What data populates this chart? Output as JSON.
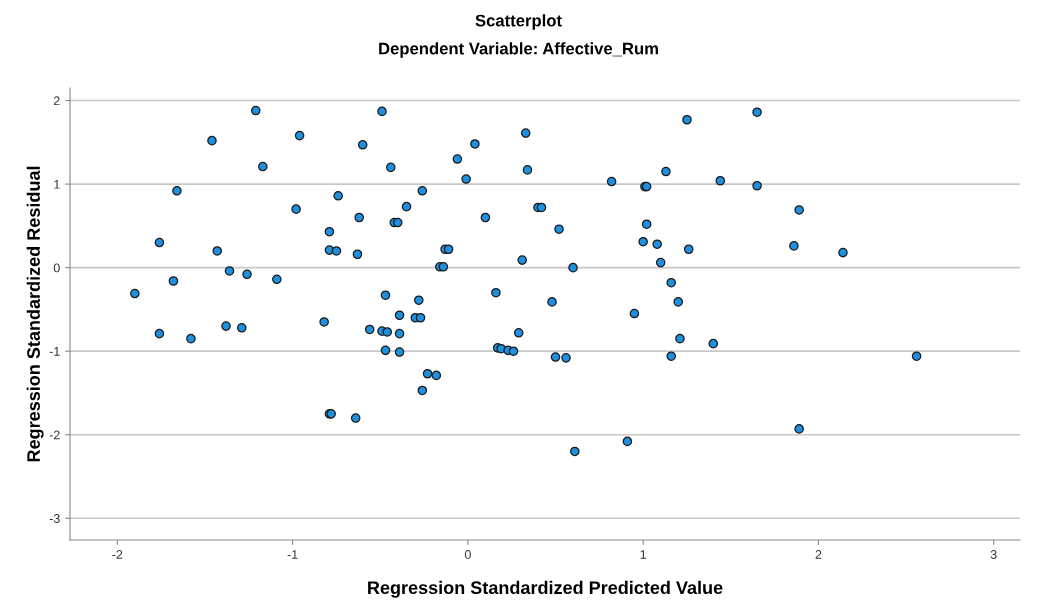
{
  "chart_data": {
    "type": "scatter",
    "title": "Scatterplot",
    "subtitle": "Dependent Variable: Affective_Rum",
    "xlabel": "Regression Standardized Predicted Value",
    "ylabel": "Regression Standardized Residual",
    "xlim": [
      -2.27,
      3.15
    ],
    "ylim": [
      -3.26,
      2.15
    ],
    "xticks": [
      -2,
      -1,
      0,
      1,
      2,
      3
    ],
    "yticks": [
      -3,
      -2,
      -1,
      0,
      1,
      2
    ],
    "grid": "y",
    "marker": "circle",
    "legend": false,
    "series": [
      {
        "color": "#1e90e0",
        "x": [
          -1.21,
          -0.49,
          -1.46,
          -0.96,
          -0.6,
          -1.17,
          -0.44,
          -1.66,
          -0.74,
          -0.98,
          -0.62,
          -0.42,
          -0.4,
          -0.79,
          -1.76,
          -1.43,
          -0.79,
          -0.75,
          -0.63,
          -1.36,
          -1.26,
          -1.09,
          -1.68,
          -1.9,
          -0.47,
          -0.82,
          -0.39,
          -1.38,
          -1.29,
          -0.56,
          -0.49,
          -0.46,
          -0.39,
          -1.76,
          -1.58,
          -0.47,
          -0.39,
          -0.79,
          -0.78,
          -0.64,
          0.33,
          1.25,
          0.04,
          -0.06,
          0.34,
          1.13,
          -0.01,
          0.82,
          1.01,
          1.02,
          1.44,
          -0.26,
          -0.35,
          0.4,
          0.42,
          0.1,
          1.02,
          0.52,
          1.0,
          1.08,
          1.26,
          -0.13,
          -0.11,
          0.31,
          -0.16,
          -0.14,
          0.6,
          1.1,
          1.16,
          0.16,
          -0.28,
          0.48,
          1.2,
          0.95,
          -0.3,
          -0.27,
          0.29,
          1.21,
          1.4,
          0.17,
          0.19,
          0.23,
          0.26,
          0.5,
          0.56,
          1.16,
          -0.23,
          -0.18,
          -0.26,
          0.91,
          0.61,
          1.65,
          1.65,
          1.89,
          1.86,
          2.14,
          2.56,
          1.89
        ],
        "values": [
          1.88,
          1.87,
          1.52,
          1.58,
          1.47,
          1.21,
          1.2,
          0.92,
          0.86,
          0.7,
          0.6,
          0.54,
          0.54,
          0.43,
          0.3,
          0.2,
          0.21,
          0.2,
          0.16,
          -0.04,
          -0.08,
          -0.14,
          -0.16,
          -0.31,
          -0.33,
          -0.65,
          -0.57,
          -0.7,
          -0.72,
          -0.74,
          -0.76,
          -0.77,
          -0.79,
          -0.79,
          -0.85,
          -0.99,
          -1.01,
          -1.75,
          -1.75,
          -1.8,
          1.61,
          1.77,
          1.48,
          1.3,
          1.17,
          1.15,
          1.06,
          1.03,
          0.97,
          0.97,
          1.04,
          0.92,
          0.73,
          0.72,
          0.72,
          0.6,
          0.52,
          0.46,
          0.31,
          0.28,
          0.22,
          0.22,
          0.22,
          0.09,
          0.01,
          0.01,
          0.0,
          0.06,
          -0.18,
          -0.3,
          -0.39,
          -0.41,
          -0.41,
          -0.55,
          -0.6,
          -0.6,
          -0.78,
          -0.85,
          -0.91,
          -0.96,
          -0.97,
          -0.99,
          -1.0,
          -1.07,
          -1.08,
          -1.06,
          -1.27,
          -1.29,
          -1.47,
          -2.08,
          -2.2,
          1.86,
          0.98,
          0.69,
          0.26,
          0.18,
          -1.06,
          -1.93
        ]
      }
    ]
  }
}
